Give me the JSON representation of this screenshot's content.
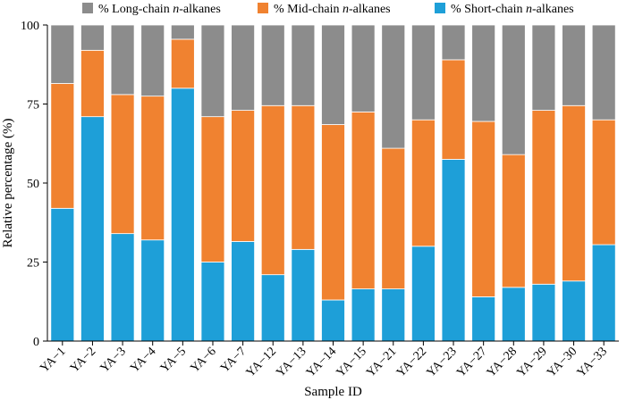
{
  "chart_data": {
    "type": "bar",
    "stacked": true,
    "title": "",
    "xlabel": "Sample ID",
    "ylabel": "Relative percentage (%)",
    "ylim": [
      0,
      100
    ],
    "yticks": [
      0,
      25,
      50,
      75,
      100
    ],
    "grid": false,
    "legend_position": "top",
    "categories": [
      "YA−1",
      "YA−2",
      "YA−3",
      "YA−4",
      "YA−5",
      "YA−6",
      "YA−7",
      "YA−12",
      "YA−13",
      "YA−14",
      "YA−15",
      "YA−21",
      "YA−22",
      "YA−23",
      "YA−27",
      "YA−28",
      "YA−29",
      "YA−30",
      "YA−33"
    ],
    "series": [
      {
        "key": "short",
        "name_prefix": "% Short-chain ",
        "name_italic": "n",
        "name_suffix": "-alkanes",
        "color": "#1e9fd8",
        "values": [
          42,
          71,
          34,
          32,
          80,
          25,
          31.5,
          21,
          29,
          13,
          16.5,
          16.5,
          30,
          57.5,
          14,
          17,
          18,
          19,
          30.5
        ]
      },
      {
        "key": "mid",
        "name_prefix": "% Mid-chain ",
        "name_italic": "n",
        "name_suffix": "-alkanes",
        "color": "#f08230",
        "values": [
          39.5,
          21,
          44,
          45.5,
          15.5,
          46,
          41.5,
          53.5,
          45.5,
          55.5,
          56,
          44.5,
          40,
          31.5,
          55.5,
          42,
          55,
          55.5,
          39.5
        ]
      },
      {
        "key": "long",
        "name_prefix": "% Long-chain ",
        "name_italic": "n",
        "name_suffix": "-alkanes",
        "color": "#8c8c8c",
        "values": [
          18.5,
          8,
          22,
          22.5,
          4.5,
          29,
          27,
          25.5,
          25.5,
          31.5,
          27.5,
          39,
          30,
          11,
          30.5,
          41,
          27,
          25.5,
          30
        ]
      }
    ],
    "legend_order": [
      "long",
      "mid",
      "short"
    ]
  }
}
